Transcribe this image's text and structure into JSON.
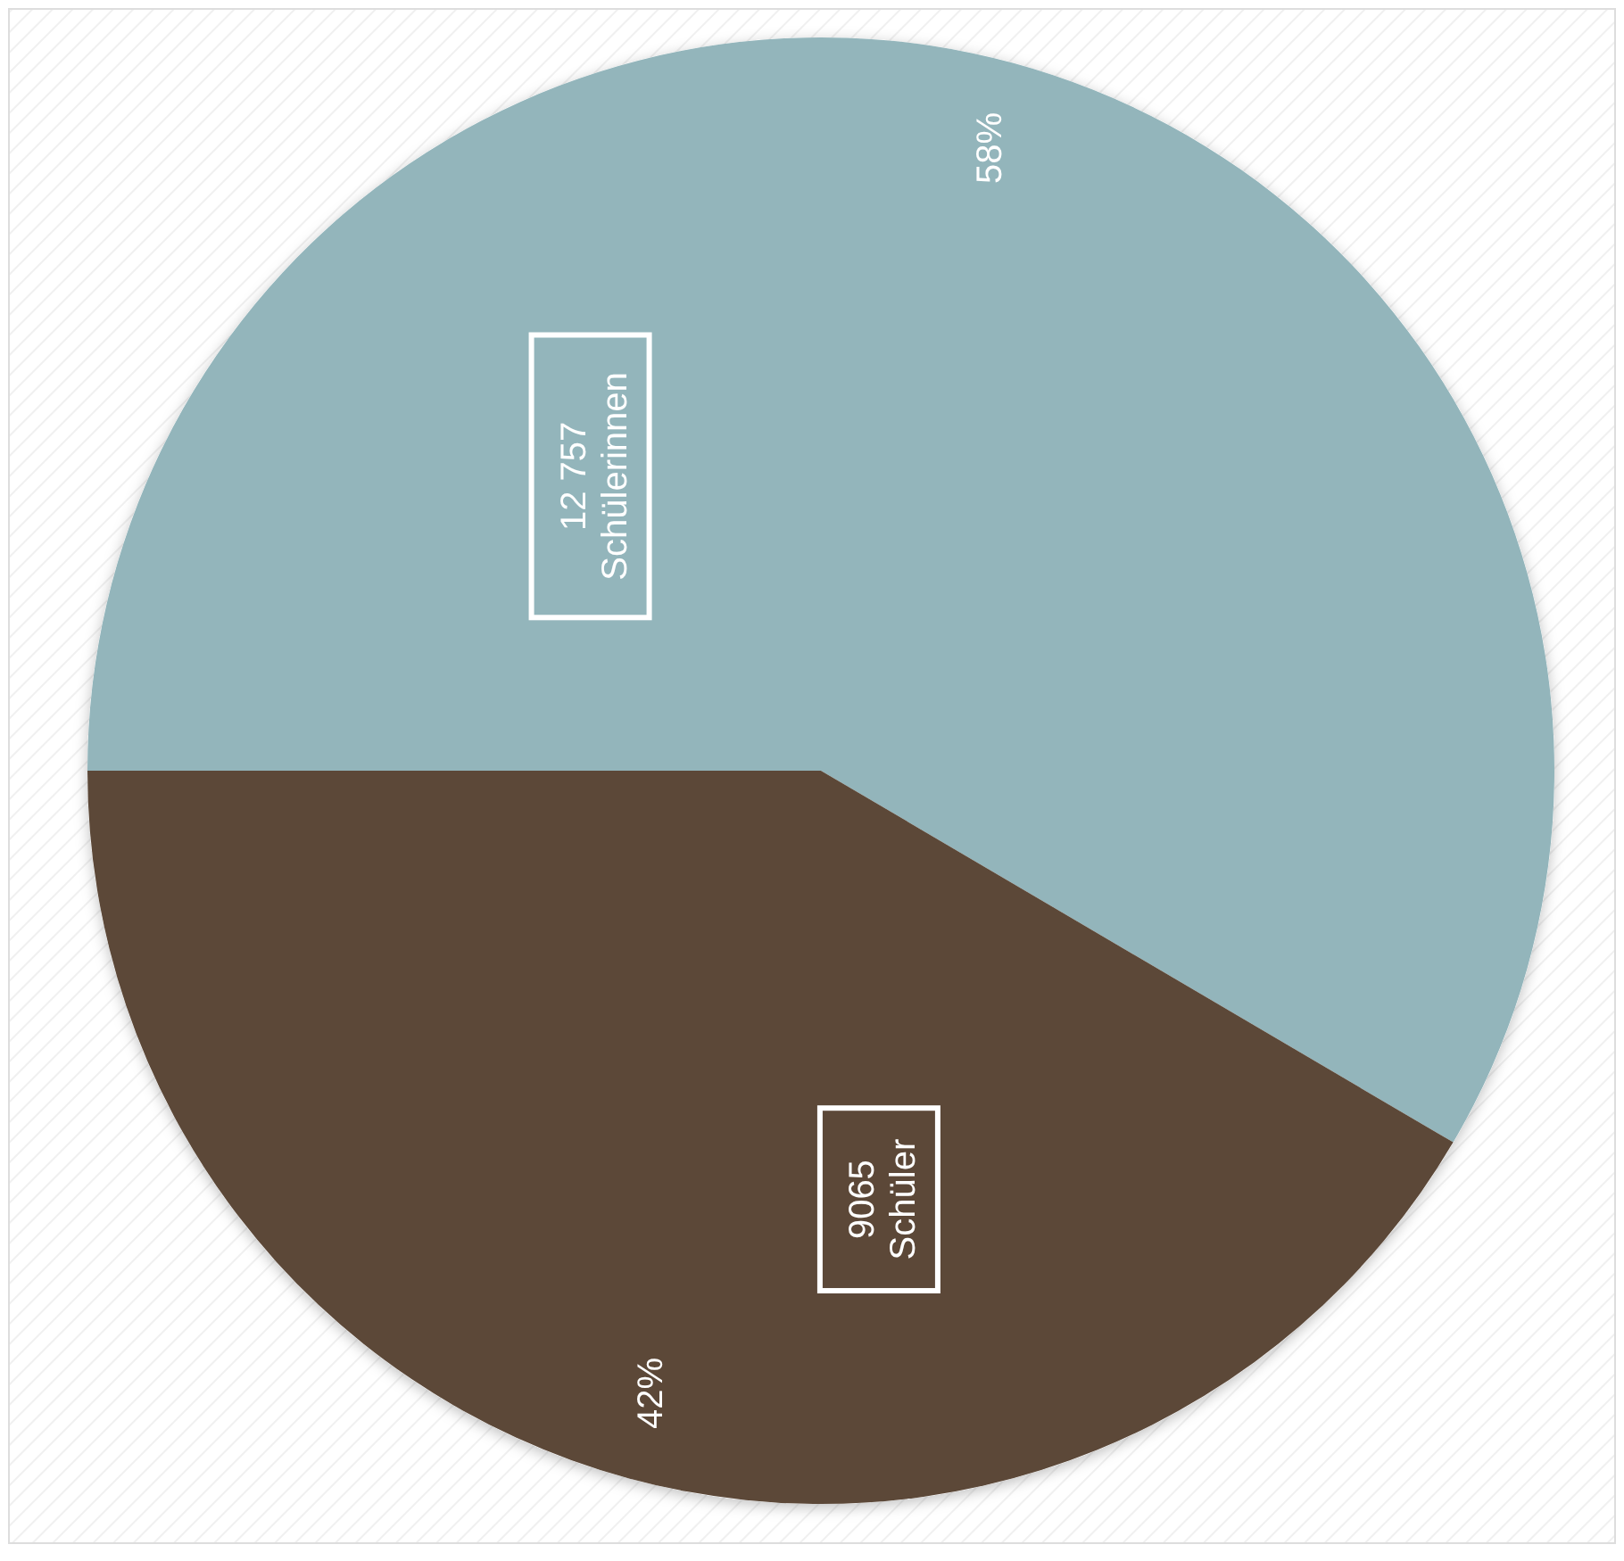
{
  "chart_data": {
    "type": "pie",
    "categories": [
      "Schülerinnen",
      "Schüler"
    ],
    "values": [
      12757,
      9065
    ],
    "value_labels": [
      "12 757",
      "9065"
    ],
    "colors": [
      "#93b5bb",
      "#5c4838"
    ],
    "annotations": [
      "58%",
      "42%"
    ]
  }
}
